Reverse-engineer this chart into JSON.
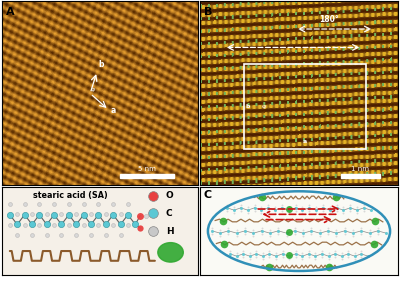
{
  "panel_A_label": "A",
  "panel_B_label": "B",
  "panel_C_label": "C",
  "scale_bar_A": "5 nm",
  "scale_bar_B": "1 nm",
  "molecule_label": "stearic acid (SA)",
  "legend_items": [
    [
      "O",
      "#e84040"
    ],
    [
      "C",
      "#5bc8d4"
    ],
    [
      "H",
      "#c8c8c8"
    ]
  ],
  "stm_dark": "#5a2800",
  "stm_mid": "#8b4500",
  "stm_bright": "#c87800",
  "stm_spot": "#e8a030",
  "dot_color_B_green": "#70b050",
  "dot_color_B_bright": "#e8c840",
  "angle_label": "180°",
  "ellipse_color": "#3090b8",
  "arrow_color": "#cc1010",
  "chain_color": "#8b5a2b",
  "legend_bg": "#f5f0e8",
  "fig_bg": "#ffffff"
}
